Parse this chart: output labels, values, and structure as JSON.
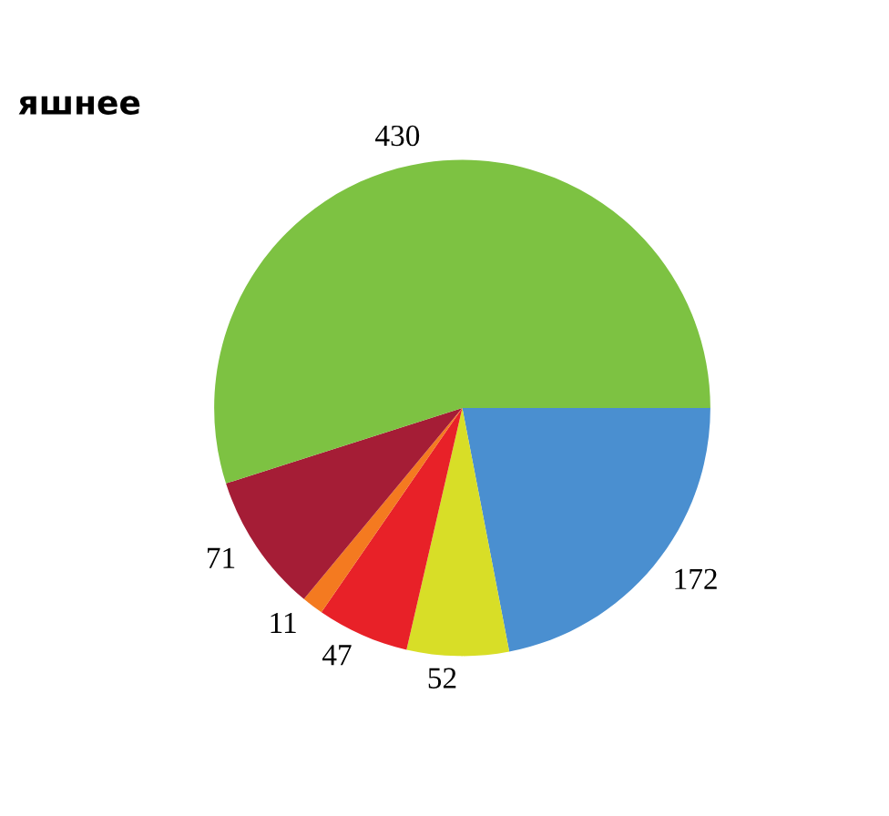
{
  "chart_data": {
    "type": "pie",
    "categories": [
      null,
      null,
      null,
      null,
      null,
      null
    ],
    "values": [
      172,
      52,
      47,
      11,
      71,
      430
    ],
    "colors": [
      "#4a8fd0",
      "#d8de27",
      "#e82128",
      "#f47a20",
      "#a51d36",
      "#7dc242"
    ],
    "data_labels": true,
    "annotations": [
      "яшнее"
    ]
  }
}
